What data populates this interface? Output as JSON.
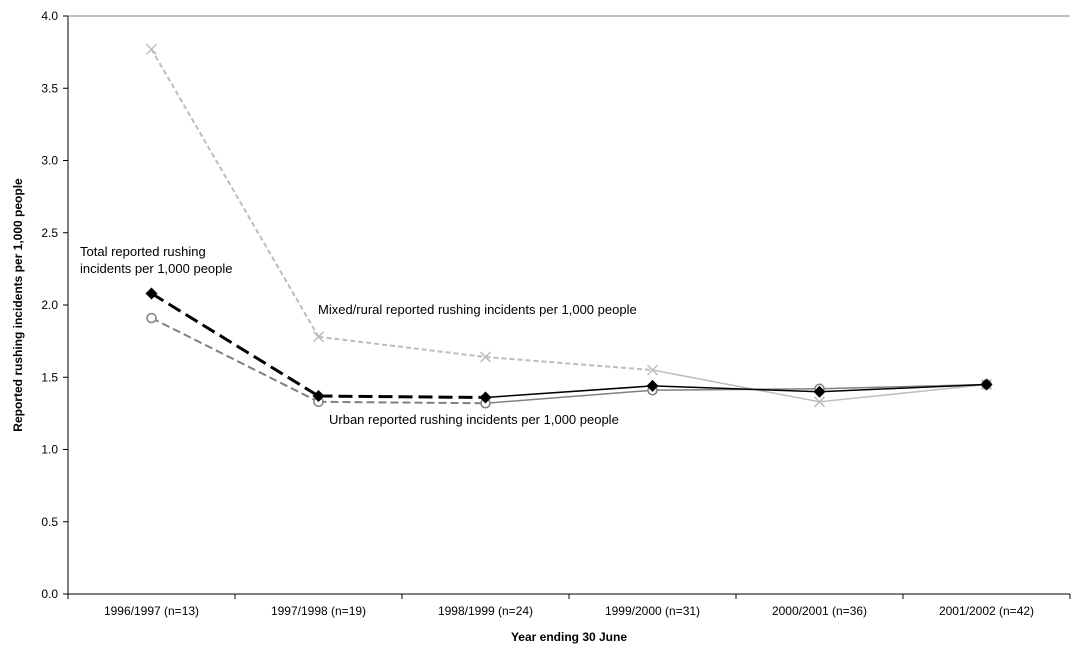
{
  "chart_data": {
    "type": "line",
    "title": "",
    "xlabel": "Year ending 30 June",
    "ylabel": "Reported rushing incidents per 1,000 people",
    "ylim": [
      0,
      4.0
    ],
    "yticks": [
      "0.0",
      "0.5",
      "1.0",
      "1.5",
      "2.0",
      "2.5",
      "3.0",
      "3.5",
      "4.0"
    ],
    "grid": false,
    "legend": "none",
    "categories": [
      "1996/1997 (n=13)",
      "1997/1998 (n=19)",
      "1998/1999 (n=24)",
      "1999/2000 (n=31)",
      "2000/2001 (n=36)",
      "2001/2002 (n=42)"
    ],
    "series": [
      {
        "name": "Mixed/rural reported rushing incidents per 1,000 people",
        "values": [
          3.77,
          1.78,
          1.64,
          1.55,
          1.33,
          1.45
        ],
        "color": "#bdbdbd",
        "marker": "x",
        "dashed_segments": 3
      },
      {
        "name": "Urban reported rushing incidents per 1,000 people",
        "values": [
          1.91,
          1.33,
          1.32,
          1.41,
          1.42,
          1.45
        ],
        "color": "#808080",
        "marker": "circle",
        "dashed_segments": 2
      },
      {
        "name": "Total reported rushing incidents per 1,000 people",
        "values": [
          2.08,
          1.37,
          1.36,
          1.44,
          1.4,
          1.45
        ],
        "color": "#000000",
        "marker": "diamond",
        "dashed_segments": 2
      }
    ],
    "annotations": {
      "total_line1": "Total reported rushing",
      "total_line2": "incidents per 1,000 people",
      "mixed": "Mixed/rural reported rushing incidents per 1,000 people",
      "urban": "Urban reported rushing incidents per 1,000 people"
    }
  }
}
